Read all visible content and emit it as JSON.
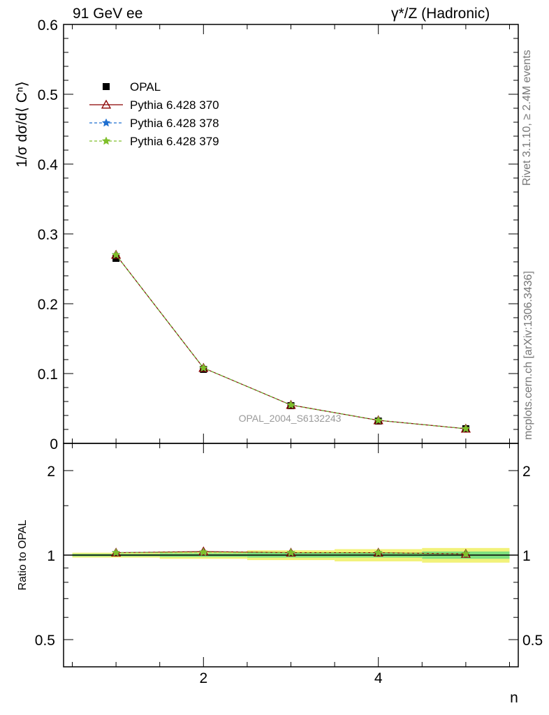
{
  "header": {
    "left": "91 GeV ee",
    "right": "γ*/Z (Hadronic)"
  },
  "side_labels": {
    "rivet": "Rivet 3.1.10, ≥ 2.4M events",
    "mcplots": "mcplots.cern.ch [arXiv:1306.3436]"
  },
  "colors": {
    "opal": "#000000",
    "pythia_370": "#8b0000",
    "pythia_378": "#1f6fd0",
    "pythia_379": "#7fbf2a",
    "band_inner": "#7fe07f",
    "band_outer": "#f2f27a"
  },
  "chart_data": [
    {
      "type": "scatter",
      "panel": "main",
      "ylabel": "1/σ dσ/d⟨ Cⁿ⟩",
      "ylim": [
        0,
        0.6
      ],
      "y_ticks": [
        0,
        0.1,
        0.2,
        0.3,
        0.4,
        0.5,
        0.6
      ],
      "y_tick_labels": [
        "0",
        "0.1",
        "0.2",
        "0.3",
        "0.4",
        "0.5",
        "0.6"
      ],
      "xlim": [
        0.4,
        5.6
      ],
      "x": [
        1,
        2,
        3,
        4,
        5
      ],
      "annotation": "OPAL_2004_S6132243",
      "legend_position": "top-left",
      "series": [
        {
          "name": "OPAL",
          "marker": "square",
          "values": [
            0.265,
            0.106,
            0.054,
            0.032,
            0.021
          ],
          "errors": [
            0.003,
            0.002,
            0.001,
            0.001,
            0.001
          ]
        },
        {
          "name": "Pythia 6.428 370",
          "marker": "triangle",
          "line": "solid",
          "values": [
            0.27,
            0.108,
            0.055,
            0.033,
            0.021
          ]
        },
        {
          "name": "Pythia 6.428 378",
          "marker": "star",
          "line": "dashed",
          "values": [
            0.27,
            0.108,
            0.055,
            0.033,
            0.021
          ]
        },
        {
          "name": "Pythia 6.428 379",
          "marker": "star",
          "line": "dashed",
          "values": [
            0.27,
            0.108,
            0.055,
            0.033,
            0.021
          ]
        }
      ]
    },
    {
      "type": "scatter",
      "panel": "ratio",
      "ylabel": "Ratio to OPAL",
      "xlabel": "n",
      "y_scale": "log",
      "ylim": [
        0.4,
        2.5
      ],
      "y_tick_values": [
        0.5,
        1,
        2
      ],
      "y_tick_labels": [
        "0.5",
        "1",
        "2"
      ],
      "x_tick_values": [
        2,
        4
      ],
      "x_tick_labels": [
        "2",
        "4"
      ],
      "xlim": [
        0.4,
        5.6
      ],
      "x": [
        1,
        2,
        3,
        4,
        5
      ],
      "series": [
        {
          "name": "Pythia 6.428 370",
          "marker": "triangle",
          "values": [
            1.02,
            1.03,
            1.02,
            1.02,
            1.01
          ]
        },
        {
          "name": "Pythia 6.428 378",
          "marker": "star",
          "values": [
            1.02,
            1.025,
            1.02,
            1.02,
            1.01
          ]
        },
        {
          "name": "Pythia 6.428 379",
          "marker": "star",
          "values": [
            1.02,
            1.025,
            1.02,
            1.02,
            1.01
          ]
        }
      ],
      "band_inner_halfwidth": [
        0.01,
        0.015,
        0.02,
        0.02,
        0.03
      ],
      "band_outer_halfwidth": [
        0.02,
        0.03,
        0.04,
        0.05,
        0.06
      ]
    }
  ]
}
